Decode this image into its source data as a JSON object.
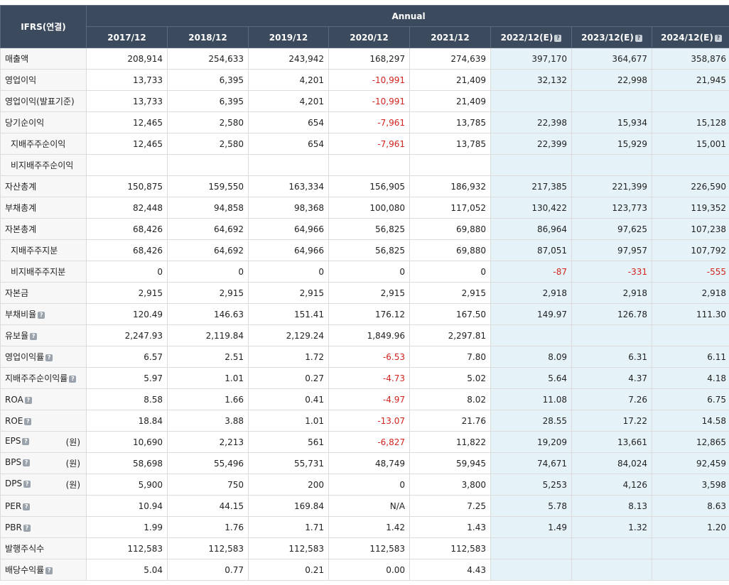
{
  "header": {
    "corner_label": "IFRS(연결)",
    "group_label": "Annual",
    "columns": [
      {
        "label": "2017/12",
        "estimate": false
      },
      {
        "label": "2018/12",
        "estimate": false
      },
      {
        "label": "2019/12",
        "estimate": false
      },
      {
        "label": "2020/12",
        "estimate": false
      },
      {
        "label": "2021/12",
        "estimate": false
      },
      {
        "label": "2022/12(E)",
        "estimate": true
      },
      {
        "label": "2023/12(E)",
        "estimate": true
      },
      {
        "label": "2024/12(E)",
        "estimate": true
      }
    ]
  },
  "help_glyph": "?",
  "rows": [
    {
      "label": "매출액",
      "sub": false,
      "help": false,
      "unit": "",
      "values": [
        "208,914",
        "254,633",
        "243,942",
        "168,297",
        "274,639",
        "397,170",
        "364,677",
        "358,876"
      ]
    },
    {
      "label": "영업이익",
      "sub": false,
      "help": false,
      "unit": "",
      "values": [
        "13,733",
        "6,395",
        "4,201",
        "-10,991",
        "21,409",
        "32,132",
        "22,998",
        "21,945"
      ]
    },
    {
      "label": "영업이익(발표기준)",
      "sub": false,
      "help": false,
      "unit": "",
      "values": [
        "13,733",
        "6,395",
        "4,201",
        "-10,991",
        "21,409",
        "",
        "",
        ""
      ]
    },
    {
      "label": "당기순이익",
      "sub": false,
      "help": false,
      "unit": "",
      "values": [
        "12,465",
        "2,580",
        "654",
        "-7,961",
        "13,785",
        "22,398",
        "15,934",
        "15,128"
      ]
    },
    {
      "label": "지배주주순이익",
      "sub": true,
      "help": false,
      "unit": "",
      "values": [
        "12,465",
        "2,580",
        "654",
        "-7,961",
        "13,785",
        "22,399",
        "15,929",
        "15,001"
      ]
    },
    {
      "label": "비지배주주순이익",
      "sub": true,
      "help": false,
      "unit": "",
      "values": [
        "",
        "",
        "",
        "",
        "",
        "",
        "",
        ""
      ]
    },
    {
      "label": "자산총계",
      "sub": false,
      "help": false,
      "unit": "",
      "values": [
        "150,875",
        "159,550",
        "163,334",
        "156,905",
        "186,932",
        "217,385",
        "221,399",
        "226,590"
      ]
    },
    {
      "label": "부채총계",
      "sub": false,
      "help": false,
      "unit": "",
      "values": [
        "82,448",
        "94,858",
        "98,368",
        "100,080",
        "117,052",
        "130,422",
        "123,773",
        "119,352"
      ]
    },
    {
      "label": "자본총계",
      "sub": false,
      "help": false,
      "unit": "",
      "values": [
        "68,426",
        "64,692",
        "64,966",
        "56,825",
        "69,880",
        "86,964",
        "97,625",
        "107,238"
      ]
    },
    {
      "label": "지배주주지분",
      "sub": true,
      "help": false,
      "unit": "",
      "values": [
        "68,426",
        "64,692",
        "64,966",
        "56,825",
        "69,880",
        "87,051",
        "97,957",
        "107,792"
      ]
    },
    {
      "label": "비지배주주지분",
      "sub": true,
      "help": false,
      "unit": "",
      "values": [
        "0",
        "0",
        "0",
        "0",
        "0",
        "-87",
        "-331",
        "-555"
      ]
    },
    {
      "label": "자본금",
      "sub": false,
      "help": false,
      "unit": "",
      "values": [
        "2,915",
        "2,915",
        "2,915",
        "2,915",
        "2,915",
        "2,918",
        "2,918",
        "2,918"
      ]
    },
    {
      "label": "부채비율",
      "sub": false,
      "help": true,
      "unit": "",
      "values": [
        "120.49",
        "146.63",
        "151.41",
        "176.12",
        "167.50",
        "149.97",
        "126.78",
        "111.30"
      ]
    },
    {
      "label": "유보율",
      "sub": false,
      "help": true,
      "unit": "",
      "values": [
        "2,247.93",
        "2,119.84",
        "2,129.24",
        "1,849.96",
        "2,297.81",
        "",
        "",
        ""
      ]
    },
    {
      "label": "영업이익률",
      "sub": false,
      "help": true,
      "unit": "",
      "values": [
        "6.57",
        "2.51",
        "1.72",
        "-6.53",
        "7.80",
        "8.09",
        "6.31",
        "6.11"
      ]
    },
    {
      "label": "지배주주순이익률",
      "sub": false,
      "help": true,
      "unit": "",
      "values": [
        "5.97",
        "1.01",
        "0.27",
        "-4.73",
        "5.02",
        "5.64",
        "4.37",
        "4.18"
      ]
    },
    {
      "label": "ROA",
      "sub": false,
      "help": true,
      "unit": "",
      "values": [
        "8.58",
        "1.66",
        "0.41",
        "-4.97",
        "8.02",
        "11.08",
        "7.26",
        "6.75"
      ]
    },
    {
      "label": "ROE",
      "sub": false,
      "help": true,
      "unit": "",
      "values": [
        "18.84",
        "3.88",
        "1.01",
        "-13.07",
        "21.76",
        "28.55",
        "17.22",
        "14.58"
      ]
    },
    {
      "label": "EPS",
      "sub": false,
      "help": true,
      "unit": "(원)",
      "values": [
        "10,690",
        "2,213",
        "561",
        "-6,827",
        "11,822",
        "19,209",
        "13,661",
        "12,865"
      ]
    },
    {
      "label": "BPS",
      "sub": false,
      "help": true,
      "unit": "(원)",
      "values": [
        "58,698",
        "55,496",
        "55,731",
        "48,749",
        "59,945",
        "74,671",
        "84,024",
        "92,459"
      ]
    },
    {
      "label": "DPS",
      "sub": false,
      "help": true,
      "unit": "(원)",
      "values": [
        "5,900",
        "750",
        "200",
        "0",
        "3,800",
        "5,253",
        "4,126",
        "3,598"
      ]
    },
    {
      "label": "PER",
      "sub": false,
      "help": true,
      "unit": "",
      "values": [
        "10.94",
        "44.15",
        "169.84",
        "N/A",
        "7.25",
        "5.78",
        "8.13",
        "8.63"
      ]
    },
    {
      "label": "PBR",
      "sub": false,
      "help": true,
      "unit": "",
      "values": [
        "1.99",
        "1.76",
        "1.71",
        "1.42",
        "1.43",
        "1.49",
        "1.32",
        "1.20"
      ]
    },
    {
      "label": "발행주식수",
      "sub": false,
      "help": false,
      "unit": "",
      "values": [
        "112,583",
        "112,583",
        "112,583",
        "112,583",
        "112,583",
        "",
        "",
        ""
      ]
    },
    {
      "label": "배당수익률",
      "sub": false,
      "help": true,
      "unit": "",
      "values": [
        "5.04",
        "0.77",
        "0.21",
        "0.00",
        "4.43",
        "",
        "",
        ""
      ]
    }
  ]
}
